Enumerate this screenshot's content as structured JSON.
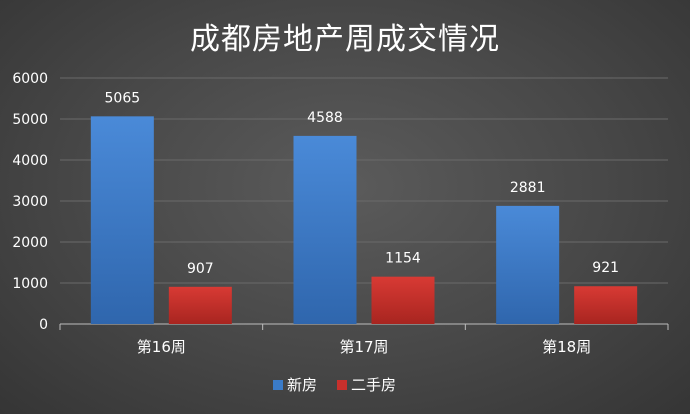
{
  "chart_data": {
    "type": "bar",
    "title": "成都房地产周成交情况",
    "categories": [
      "第16周",
      "第17周",
      "第18周"
    ],
    "series": [
      {
        "name": "新房",
        "values": [
          5065,
          4588,
          2881
        ],
        "color": "#3a7bc8"
      },
      {
        "name": "二手房",
        "values": [
          907,
          1154,
          921
        ],
        "color": "#c8302c"
      }
    ],
    "ylim": [
      0,
      6000
    ],
    "yticks": [
      0,
      1000,
      2000,
      3000,
      4000,
      5000,
      6000
    ],
    "grid": true,
    "legend_position": "bottom",
    "data_labels": true
  }
}
